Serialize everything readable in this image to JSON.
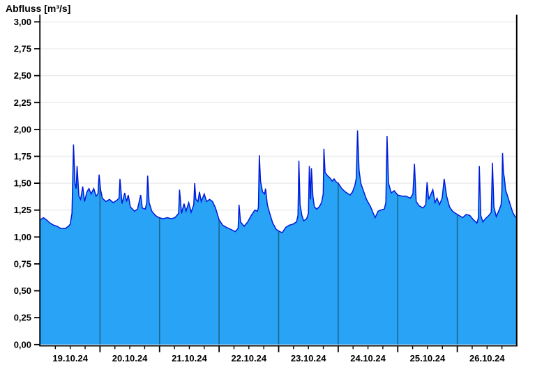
{
  "title": "Abfluss [m³/s]",
  "chart_data": {
    "type": "area",
    "title": "Abfluss [m³/s]",
    "ylabel": "Abfluss",
    "unit": "m³/s",
    "ylim": [
      0,
      3.0
    ],
    "y_tick_step": 0.25,
    "y_tick_labels": [
      "0,00",
      "0,25",
      "0,50",
      "0,75",
      "1,00",
      "1,25",
      "1,50",
      "1,75",
      "2,00",
      "2,25",
      "2,50",
      "2,75",
      "3,00"
    ],
    "x_day_labels": [
      "19.10.24",
      "20.10.24",
      "21.10.24",
      "22.10.24",
      "23.10.24",
      "24.10.24",
      "25.10.24",
      "26.10.24"
    ],
    "x_days_total": 8,
    "x_minor_ticks_per_day": 4,
    "grid_horizontal": true,
    "grid_vertical_day_lines": true,
    "legend": "none",
    "colors": {
      "fill": "#29A3F5",
      "line": "#0018DC",
      "day_gridline": "#1A6890",
      "h_gridline": "#ECECEC",
      "axis": "#000000",
      "background": "#FFFFFF"
    },
    "series_name": "Abfluss",
    "points": [
      [
        0,
        1.16
      ],
      [
        0.05,
        1.18
      ],
      [
        0.1,
        1.16
      ],
      [
        0.16,
        1.13
      ],
      [
        0.22,
        1.11
      ],
      [
        0.28,
        1.1
      ],
      [
        0.34,
        1.08
      ],
      [
        0.42,
        1.08
      ],
      [
        0.47,
        1.1
      ],
      [
        0.5,
        1.12
      ],
      [
        0.53,
        1.22
      ],
      [
        0.555,
        1.86
      ],
      [
        0.58,
        1.5
      ],
      [
        0.6,
        1.45
      ],
      [
        0.615,
        1.66
      ],
      [
        0.645,
        1.38
      ],
      [
        0.675,
        1.35
      ],
      [
        0.71,
        1.47
      ],
      [
        0.74,
        1.33
      ],
      [
        0.78,
        1.42
      ],
      [
        0.815,
        1.45
      ],
      [
        0.85,
        1.4
      ],
      [
        0.895,
        1.45
      ],
      [
        0.935,
        1.38
      ],
      [
        0.965,
        1.4
      ],
      [
        0.985,
        1.58
      ],
      [
        1.01,
        1.44
      ],
      [
        1.04,
        1.36
      ],
      [
        1.1,
        1.33
      ],
      [
        1.16,
        1.35
      ],
      [
        1.22,
        1.32
      ],
      [
        1.28,
        1.34
      ],
      [
        1.32,
        1.36
      ],
      [
        1.335,
        1.54
      ],
      [
        1.37,
        1.31
      ],
      [
        1.415,
        1.41
      ],
      [
        1.445,
        1.33
      ],
      [
        1.475,
        1.39
      ],
      [
        1.51,
        1.28
      ],
      [
        1.58,
        1.24
      ],
      [
        1.63,
        1.26
      ],
      [
        1.683,
        1.39
      ],
      [
        1.71,
        1.27
      ],
      [
        1.76,
        1.26
      ],
      [
        1.785,
        1.32
      ],
      [
        1.8,
        1.57
      ],
      [
        1.825,
        1.32
      ],
      [
        1.87,
        1.24
      ],
      [
        1.93,
        1.2
      ],
      [
        1.99,
        1.18
      ],
      [
        2.06,
        1.17
      ],
      [
        2.13,
        1.18
      ],
      [
        2.2,
        1.17
      ],
      [
        2.26,
        1.18
      ],
      [
        2.32,
        1.22
      ],
      [
        2.335,
        1.44
      ],
      [
        2.37,
        1.22
      ],
      [
        2.41,
        1.31
      ],
      [
        2.445,
        1.24
      ],
      [
        2.49,
        1.32
      ],
      [
        2.53,
        1.23
      ],
      [
        2.575,
        1.3
      ],
      [
        2.59,
        1.5
      ],
      [
        2.61,
        1.35
      ],
      [
        2.645,
        1.33
      ],
      [
        2.67,
        1.42
      ],
      [
        2.7,
        1.33
      ],
      [
        2.75,
        1.4
      ],
      [
        2.79,
        1.33
      ],
      [
        2.84,
        1.35
      ],
      [
        2.89,
        1.33
      ],
      [
        2.94,
        1.27
      ],
      [
        3.0,
        1.16
      ],
      [
        3.06,
        1.11
      ],
      [
        3.12,
        1.09
      ],
      [
        3.2,
        1.07
      ],
      [
        3.27,
        1.05
      ],
      [
        3.32,
        1.08
      ],
      [
        3.335,
        1.3
      ],
      [
        3.36,
        1.14
      ],
      [
        3.42,
        1.1
      ],
      [
        3.48,
        1.14
      ],
      [
        3.54,
        1.2
      ],
      [
        3.6,
        1.25
      ],
      [
        3.645,
        1.24
      ],
      [
        3.66,
        1.28
      ],
      [
        3.675,
        1.76
      ],
      [
        3.695,
        1.52
      ],
      [
        3.73,
        1.42
      ],
      [
        3.765,
        1.4
      ],
      [
        3.78,
        1.45
      ],
      [
        3.81,
        1.3
      ],
      [
        3.85,
        1.22
      ],
      [
        3.9,
        1.13
      ],
      [
        3.96,
        1.07
      ],
      [
        4.02,
        1.05
      ],
      [
        4.06,
        1.04
      ],
      [
        4.12,
        1.09
      ],
      [
        4.18,
        1.11
      ],
      [
        4.24,
        1.12
      ],
      [
        4.3,
        1.14
      ],
      [
        4.325,
        1.2
      ],
      [
        4.34,
        1.71
      ],
      [
        4.36,
        1.3
      ],
      [
        4.39,
        1.2
      ],
      [
        4.42,
        1.15
      ],
      [
        4.47,
        1.17
      ],
      [
        4.5,
        1.22
      ],
      [
        4.515,
        1.66
      ],
      [
        4.535,
        1.35
      ],
      [
        4.55,
        1.64
      ],
      [
        4.575,
        1.38
      ],
      [
        4.6,
        1.28
      ],
      [
        4.64,
        1.26
      ],
      [
        4.68,
        1.28
      ],
      [
        4.72,
        1.32
      ],
      [
        4.748,
        1.4
      ],
      [
        4.76,
        1.82
      ],
      [
        4.78,
        1.6
      ],
      [
        4.82,
        1.57
      ],
      [
        4.86,
        1.55
      ],
      [
        4.9,
        1.52
      ],
      [
        4.93,
        1.54
      ],
      [
        4.97,
        1.51
      ],
      [
        5.0,
        1.5
      ],
      [
        5.06,
        1.45
      ],
      [
        5.12,
        1.42
      ],
      [
        5.17,
        1.4
      ],
      [
        5.2,
        1.39
      ],
      [
        5.24,
        1.42
      ],
      [
        5.28,
        1.48
      ],
      [
        5.305,
        1.55
      ],
      [
        5.325,
        1.99
      ],
      [
        5.35,
        1.62
      ],
      [
        5.38,
        1.5
      ],
      [
        5.41,
        1.45
      ],
      [
        5.475,
        1.35
      ],
      [
        5.545,
        1.28
      ],
      [
        5.59,
        1.22
      ],
      [
        5.62,
        1.18
      ],
      [
        5.67,
        1.24
      ],
      [
        5.71,
        1.25
      ],
      [
        5.775,
        1.26
      ],
      [
        5.8,
        1.32
      ],
      [
        5.82,
        1.94
      ],
      [
        5.845,
        1.5
      ],
      [
        5.89,
        1.41
      ],
      [
        5.94,
        1.43
      ],
      [
        6.0,
        1.39
      ],
      [
        6.07,
        1.38
      ],
      [
        6.14,
        1.38
      ],
      [
        6.21,
        1.36
      ],
      [
        6.255,
        1.4
      ],
      [
        6.28,
        1.68
      ],
      [
        6.31,
        1.33
      ],
      [
        6.36,
        1.29
      ],
      [
        6.425,
        1.27
      ],
      [
        6.47,
        1.3
      ],
      [
        6.492,
        1.51
      ],
      [
        6.52,
        1.35
      ],
      [
        6.59,
        1.44
      ],
      [
        6.625,
        1.32
      ],
      [
        6.66,
        1.36
      ],
      [
        6.7,
        1.3
      ],
      [
        6.745,
        1.36
      ],
      [
        6.78,
        1.54
      ],
      [
        6.82,
        1.38
      ],
      [
        6.87,
        1.28
      ],
      [
        6.92,
        1.24
      ],
      [
        6.97,
        1.22
      ],
      [
        7.03,
        1.2
      ],
      [
        7.09,
        1.18
      ],
      [
        7.15,
        1.21
      ],
      [
        7.21,
        1.2
      ],
      [
        7.27,
        1.16
      ],
      [
        7.33,
        1.13
      ],
      [
        7.355,
        1.18
      ],
      [
        7.37,
        1.66
      ],
      [
        7.395,
        1.2
      ],
      [
        7.43,
        1.14
      ],
      [
        7.47,
        1.17
      ],
      [
        7.53,
        1.2
      ],
      [
        7.57,
        1.23
      ],
      [
        7.59,
        1.69
      ],
      [
        7.615,
        1.28
      ],
      [
        7.655,
        1.19
      ],
      [
        7.71,
        1.26
      ],
      [
        7.735,
        1.3
      ],
      [
        7.748,
        1.42
      ],
      [
        7.76,
        1.78
      ],
      [
        7.775,
        1.6
      ],
      [
        7.79,
        1.55
      ],
      [
        7.81,
        1.44
      ],
      [
        7.85,
        1.37
      ],
      [
        7.89,
        1.3
      ],
      [
        7.93,
        1.23
      ],
      [
        7.97,
        1.19
      ],
      [
        8.0,
        1.18
      ]
    ]
  }
}
